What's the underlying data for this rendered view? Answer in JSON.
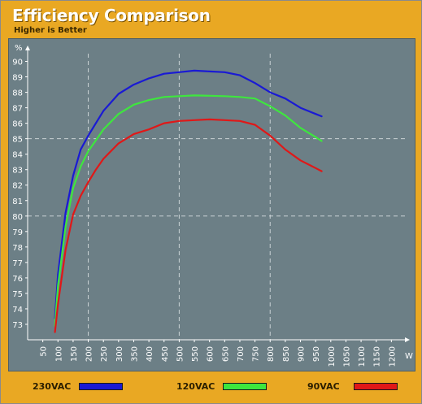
{
  "header": {
    "title": "Efficiency Comparison",
    "subtitle": "Higher is Better"
  },
  "chart_data": {
    "type": "line",
    "ylabel": "%",
    "xlabel": "W",
    "x_ticks": [
      50,
      100,
      150,
      200,
      250,
      300,
      350,
      400,
      450,
      500,
      550,
      600,
      650,
      700,
      750,
      800,
      850,
      900,
      950,
      1000,
      1050,
      1100,
      1150,
      1200
    ],
    "y_ticks": [
      73,
      74,
      75,
      76,
      77,
      78,
      79,
      80,
      81,
      82,
      83,
      84,
      85,
      86,
      87,
      88,
      89,
      90
    ],
    "xlim": [
      0,
      1250
    ],
    "ylim": [
      72,
      90.5
    ],
    "grid": {
      "vertical_at": [
        200,
        500,
        800
      ],
      "horizontal_at": [
        80,
        85
      ],
      "style": "dashed"
    },
    "legend_position": "bottom",
    "x": [
      90,
      100,
      125,
      150,
      175,
      200,
      225,
      250,
      300,
      350,
      400,
      450,
      500,
      550,
      600,
      650,
      700,
      750,
      800,
      850,
      900,
      950,
      970
    ],
    "series": [
      {
        "name": "230VAC",
        "color": "#1a1ad4",
        "values": [
          73.4,
          76.2,
          80.2,
          82.6,
          84.3,
          85.2,
          86.0,
          86.8,
          87.9,
          88.5,
          88.9,
          89.2,
          89.3,
          89.4,
          89.35,
          89.3,
          89.1,
          88.6,
          88.0,
          87.6,
          87.0,
          86.6,
          86.45
        ]
      },
      {
        "name": "120VAC",
        "color": "#3ee63e",
        "values": [
          72.9,
          75.5,
          79.3,
          81.8,
          83.2,
          84.2,
          84.9,
          85.6,
          86.6,
          87.2,
          87.5,
          87.7,
          87.75,
          87.8,
          87.78,
          87.75,
          87.7,
          87.6,
          87.1,
          86.5,
          85.7,
          85.1,
          84.85
        ]
      },
      {
        "name": "90VAC",
        "color": "#e01818",
        "values": [
          72.5,
          74.3,
          77.8,
          80.1,
          81.3,
          82.2,
          83.0,
          83.7,
          84.7,
          85.3,
          85.6,
          86.0,
          86.15,
          86.2,
          86.25,
          86.2,
          86.15,
          85.9,
          85.2,
          84.3,
          83.6,
          83.1,
          82.9
        ]
      }
    ]
  }
}
